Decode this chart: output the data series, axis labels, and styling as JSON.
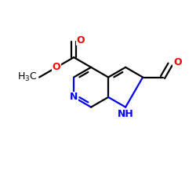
{
  "bg_color": "#ffffff",
  "bond_color": "#000000",
  "n_color": "#0000ff",
  "o_color": "#ff0000",
  "bond_lw": 1.6,
  "font_size": 9.0,
  "fig_size": [
    2.5,
    2.5
  ],
  "dpi": 100,
  "xlim": [
    0,
    250
  ],
  "ylim": [
    0,
    250
  ]
}
